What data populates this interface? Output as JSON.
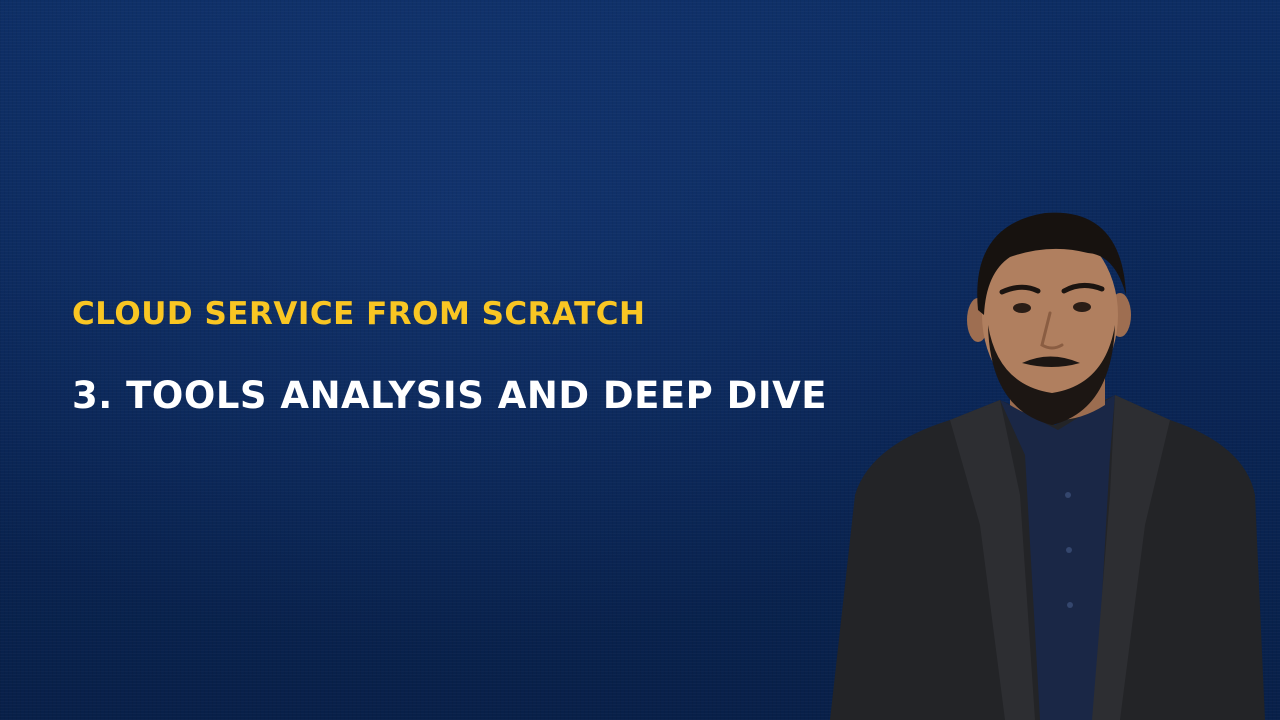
{
  "slide": {
    "series_title": "CLOUD SERVICE FROM SCRATCH",
    "episode_title": "3. TOOLS ANALYSIS AND DEEP DIVE"
  },
  "colors": {
    "background": "#0a2657",
    "series_title": "#f9c623",
    "episode_title": "#ffffff"
  },
  "images": {
    "presenter": "presenter-photo"
  }
}
